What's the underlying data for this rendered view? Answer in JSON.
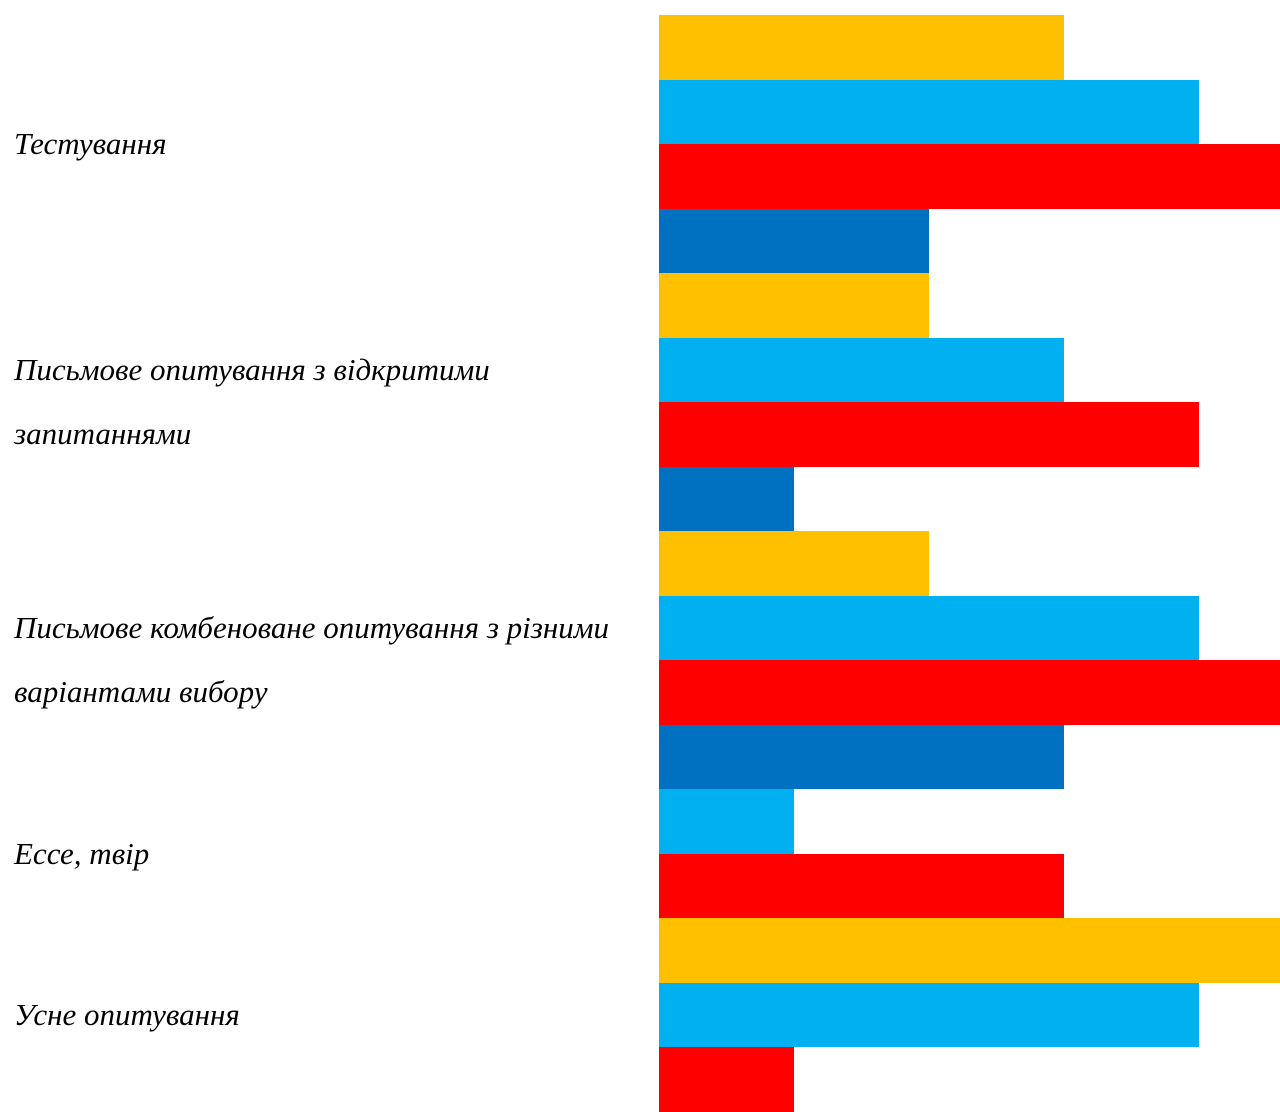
{
  "chart_data": {
    "type": "bar",
    "orientation": "horizontal",
    "categories": [
      "Тестування",
      "Письмове опитування з відкритими запитаннями",
      "Письмове комбеноване опитування з різними варіантами вибору",
      "Ессе, твір",
      "Усне опитування"
    ],
    "groups": [
      {
        "category": "Тестування",
        "bars": [
          {
            "color": "#FFC000",
            "value": 3
          },
          {
            "color": "#00B0F0",
            "value": 4
          },
          {
            "color": "#FF0000",
            "value": 4.6
          },
          {
            "color": "#0070C0",
            "value": 2
          }
        ]
      },
      {
        "category": "Письмове опитування з відкритими запитаннями",
        "bars": [
          {
            "color": "#FFC000",
            "value": 2
          },
          {
            "color": "#00B0F0",
            "value": 3
          },
          {
            "color": "#FF0000",
            "value": 4
          },
          {
            "color": "#0070C0",
            "value": 1
          }
        ]
      },
      {
        "category": "Письмове комбеноване опитування з різними варіантами вибору",
        "bars": [
          {
            "color": "#FFC000",
            "value": 2
          },
          {
            "color": "#00B0F0",
            "value": 4
          },
          {
            "color": "#FF0000",
            "value": 4.6
          },
          {
            "color": "#0070C0",
            "value": 3
          }
        ]
      },
      {
        "category": "Ессе, твір",
        "bars": [
          {
            "color": "#00B0F0",
            "value": 1
          },
          {
            "color": "#FF0000",
            "value": 3
          }
        ]
      },
      {
        "category": "Усне опитування",
        "bars": [
          {
            "color": "#FFC000",
            "value": 4.6
          },
          {
            "color": "#00B0F0",
            "value": 4
          },
          {
            "color": "#FF0000",
            "value": 1
          }
        ]
      }
    ],
    "xlim": [
      0,
      4.6
    ],
    "grid": false,
    "legend": "none"
  }
}
